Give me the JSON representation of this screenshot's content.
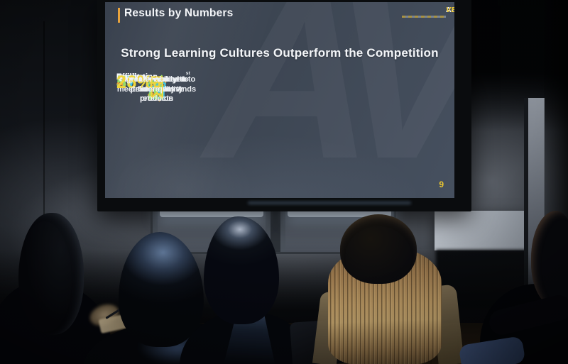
{
  "slide": {
    "header_title": "Results by Numbers",
    "logo": {
      "primary": "ADRIANA",
      "accent": "VELA"
    },
    "main_title": "Strong Learning Cultures Outperform the Competition",
    "metrics": [
      {
        "icon": "rocket-icon",
        "label": "Innovation",
        "value": "46%",
        "description": "more likely to be 1st to market",
        "accent_color": "#EFA233"
      },
      {
        "icon": "ballot-box-icon",
        "label": "Efficiency",
        "value": "37%",
        "description": "great employee productivity & retention",
        "accent_color": "#3BC4E8"
      },
      {
        "icon": "growth-chart-icon",
        "label": "Agility",
        "value": "58%",
        "description": "more prepared to meet future demands",
        "accent_color": "#97DC69"
      },
      {
        "icon": "ribbon-star-icon",
        "label": "Quality",
        "value": "26%",
        "description": "greater ability to deliver quality products",
        "accent_color": "#F0D43C"
      }
    ],
    "page_number": "9",
    "colors": {
      "header_bar": "#E8A33D",
      "logo_accent": "#E9C531",
      "slide_background": "#3D4653"
    }
  }
}
